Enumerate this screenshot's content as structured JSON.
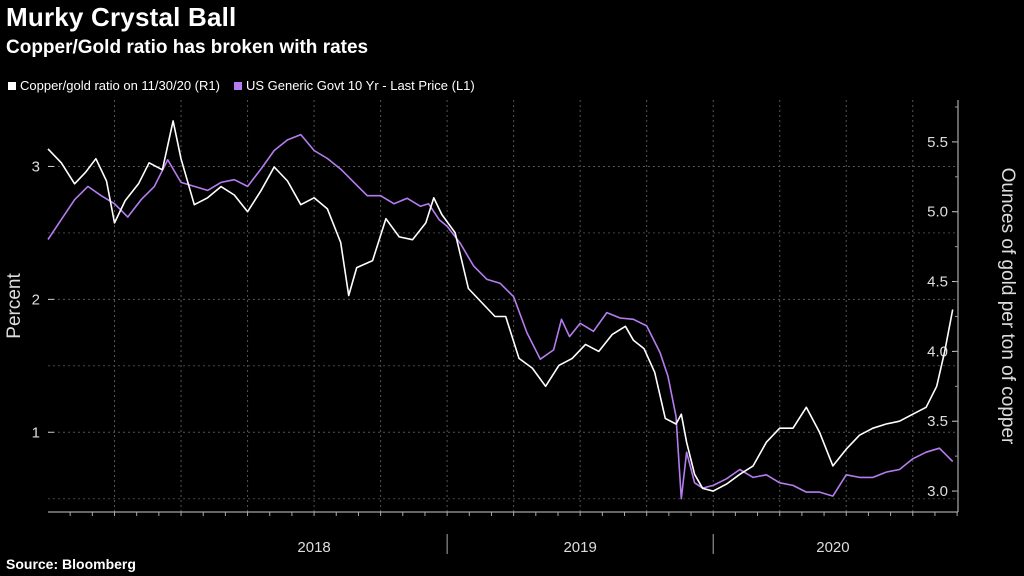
{
  "title": "Murky Crystal Ball",
  "subtitle": "Copper/Gold ratio has broken with rates",
  "source": "Source: Bloomberg",
  "chart_data": {
    "type": "line",
    "left_axis": {
      "label": "Percent",
      "ticks": [
        "1",
        "2",
        "3"
      ],
      "range": [
        0.4,
        3.5
      ]
    },
    "right_axis": {
      "label": "Ounces of gold per ton of copper",
      "ticks": [
        "3.0",
        "3.5",
        "4.0",
        "4.5",
        "5.0",
        "5.5"
      ],
      "range": [
        2.85,
        5.8
      ]
    },
    "x_labels": [
      "2018",
      "2019",
      "2020"
    ],
    "x_range": [
      2017.5,
      2020.92
    ],
    "grid": true,
    "legend_position": "top-left",
    "series": [
      {
        "name": "Copper/gold ratio on 11/30/20 (R1)",
        "axis": "right",
        "color": "#ffffff",
        "points": [
          [
            2017.5,
            5.45
          ],
          [
            2017.55,
            5.35
          ],
          [
            2017.6,
            5.2
          ],
          [
            2017.64,
            5.28
          ],
          [
            2017.68,
            5.38
          ],
          [
            2017.72,
            5.22
          ],
          [
            2017.75,
            4.92
          ],
          [
            2017.79,
            5.08
          ],
          [
            2017.84,
            5.2
          ],
          [
            2017.88,
            5.35
          ],
          [
            2017.93,
            5.3
          ],
          [
            2017.97,
            5.65
          ],
          [
            2018.0,
            5.38
          ],
          [
            2018.05,
            5.05
          ],
          [
            2018.1,
            5.1
          ],
          [
            2018.15,
            5.18
          ],
          [
            2018.2,
            5.12
          ],
          [
            2018.25,
            5.0
          ],
          [
            2018.3,
            5.15
          ],
          [
            2018.35,
            5.32
          ],
          [
            2018.4,
            5.22
          ],
          [
            2018.45,
            5.05
          ],
          [
            2018.5,
            5.1
          ],
          [
            2018.55,
            5.02
          ],
          [
            2018.6,
            4.78
          ],
          [
            2018.63,
            4.4
          ],
          [
            2018.66,
            4.6
          ],
          [
            2018.72,
            4.65
          ],
          [
            2018.77,
            4.95
          ],
          [
            2018.82,
            4.82
          ],
          [
            2018.87,
            4.8
          ],
          [
            2018.92,
            4.92
          ],
          [
            2018.95,
            5.1
          ],
          [
            2018.98,
            4.98
          ],
          [
            2019.03,
            4.85
          ],
          [
            2019.08,
            4.45
          ],
          [
            2019.13,
            4.35
          ],
          [
            2019.18,
            4.25
          ],
          [
            2019.22,
            4.25
          ],
          [
            2019.27,
            3.95
          ],
          [
            2019.32,
            3.88
          ],
          [
            2019.37,
            3.75
          ],
          [
            2019.42,
            3.9
          ],
          [
            2019.47,
            3.95
          ],
          [
            2019.52,
            4.05
          ],
          [
            2019.57,
            4.0
          ],
          [
            2019.62,
            4.12
          ],
          [
            2019.67,
            4.18
          ],
          [
            2019.7,
            4.08
          ],
          [
            2019.74,
            4.02
          ],
          [
            2019.78,
            3.85
          ],
          [
            2019.82,
            3.52
          ],
          [
            2019.86,
            3.48
          ],
          [
            2019.88,
            3.55
          ],
          [
            2019.9,
            3.35
          ],
          [
            2019.93,
            3.12
          ],
          [
            2019.96,
            3.02
          ],
          [
            2020.0,
            3.0
          ],
          [
            2020.05,
            3.05
          ],
          [
            2020.1,
            3.12
          ],
          [
            2020.15,
            3.18
          ],
          [
            2020.2,
            3.35
          ],
          [
            2020.25,
            3.45
          ],
          [
            2020.3,
            3.45
          ],
          [
            2020.35,
            3.6
          ],
          [
            2020.4,
            3.42
          ],
          [
            2020.45,
            3.18
          ],
          [
            2020.5,
            3.3
          ],
          [
            2020.55,
            3.4
          ],
          [
            2020.6,
            3.45
          ],
          [
            2020.65,
            3.48
          ],
          [
            2020.7,
            3.5
          ],
          [
            2020.75,
            3.55
          ],
          [
            2020.8,
            3.6
          ],
          [
            2020.84,
            3.75
          ],
          [
            2020.87,
            4.0
          ],
          [
            2020.9,
            4.3
          ]
        ]
      },
      {
        "name": "US Generic Govt 10 Yr - Last Price (L1)",
        "axis": "left",
        "color": "#b57cf0",
        "points": [
          [
            2017.5,
            2.45
          ],
          [
            2017.55,
            2.6
          ],
          [
            2017.6,
            2.75
          ],
          [
            2017.65,
            2.85
          ],
          [
            2017.7,
            2.78
          ],
          [
            2017.75,
            2.72
          ],
          [
            2017.8,
            2.62
          ],
          [
            2017.85,
            2.75
          ],
          [
            2017.9,
            2.85
          ],
          [
            2017.95,
            3.05
          ],
          [
            2018.0,
            2.88
          ],
          [
            2018.05,
            2.85
          ],
          [
            2018.1,
            2.82
          ],
          [
            2018.15,
            2.88
          ],
          [
            2018.2,
            2.9
          ],
          [
            2018.25,
            2.85
          ],
          [
            2018.3,
            2.98
          ],
          [
            2018.35,
            3.12
          ],
          [
            2018.4,
            3.2
          ],
          [
            2018.45,
            3.24
          ],
          [
            2018.5,
            3.12
          ],
          [
            2018.55,
            3.06
          ],
          [
            2018.6,
            2.98
          ],
          [
            2018.65,
            2.88
          ],
          [
            2018.7,
            2.78
          ],
          [
            2018.75,
            2.78
          ],
          [
            2018.8,
            2.72
          ],
          [
            2018.85,
            2.76
          ],
          [
            2018.9,
            2.7
          ],
          [
            2018.93,
            2.72
          ],
          [
            2018.97,
            2.6
          ],
          [
            2019.0,
            2.55
          ],
          [
            2019.05,
            2.42
          ],
          [
            2019.1,
            2.25
          ],
          [
            2019.15,
            2.15
          ],
          [
            2019.2,
            2.12
          ],
          [
            2019.25,
            2.02
          ],
          [
            2019.3,
            1.75
          ],
          [
            2019.35,
            1.55
          ],
          [
            2019.4,
            1.62
          ],
          [
            2019.43,
            1.85
          ],
          [
            2019.46,
            1.72
          ],
          [
            2019.5,
            1.82
          ],
          [
            2019.55,
            1.76
          ],
          [
            2019.6,
            1.9
          ],
          [
            2019.65,
            1.86
          ],
          [
            2019.7,
            1.85
          ],
          [
            2019.75,
            1.8
          ],
          [
            2019.8,
            1.6
          ],
          [
            2019.83,
            1.42
          ],
          [
            2019.86,
            1.12
          ],
          [
            2019.88,
            0.5
          ],
          [
            2019.9,
            0.85
          ],
          [
            2019.93,
            0.62
          ],
          [
            2019.96,
            0.58
          ],
          [
            2020.0,
            0.6
          ],
          [
            2020.05,
            0.65
          ],
          [
            2020.1,
            0.72
          ],
          [
            2020.15,
            0.66
          ],
          [
            2020.2,
            0.68
          ],
          [
            2020.25,
            0.62
          ],
          [
            2020.3,
            0.6
          ],
          [
            2020.35,
            0.55
          ],
          [
            2020.4,
            0.55
          ],
          [
            2020.45,
            0.52
          ],
          [
            2020.5,
            0.68
          ],
          [
            2020.55,
            0.66
          ],
          [
            2020.6,
            0.66
          ],
          [
            2020.65,
            0.7
          ],
          [
            2020.7,
            0.72
          ],
          [
            2020.75,
            0.8
          ],
          [
            2020.8,
            0.85
          ],
          [
            2020.85,
            0.88
          ],
          [
            2020.88,
            0.82
          ],
          [
            2020.9,
            0.78
          ]
        ]
      }
    ]
  }
}
